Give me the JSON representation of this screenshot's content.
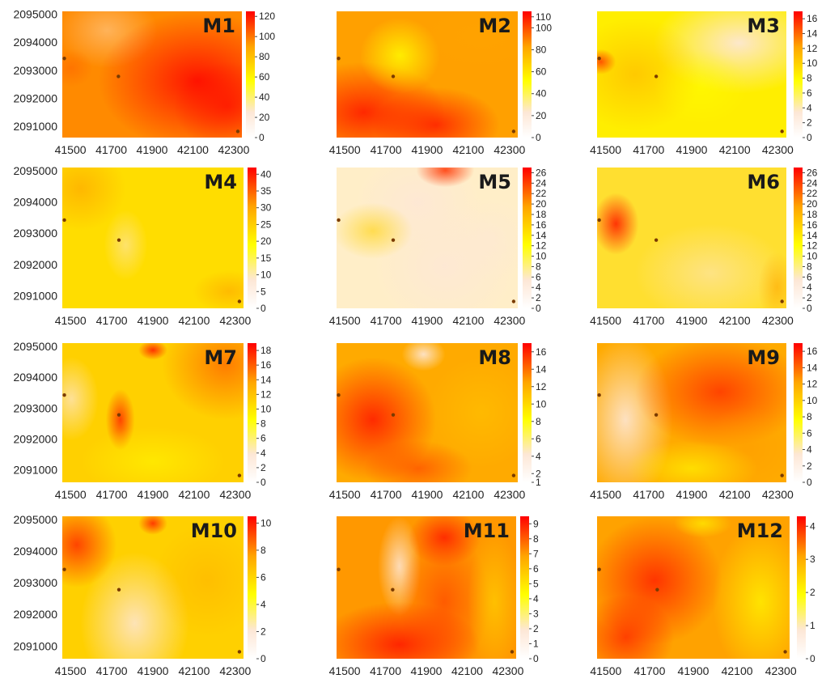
{
  "chart_data": [
    {
      "type": "heatmap",
      "title": "M1",
      "x_ticks": [
        "41500",
        "41700",
        "41900",
        "42100",
        "42300"
      ],
      "y_ticks": [
        "2095000",
        "2094000",
        "2093000",
        "2092000",
        "2091000"
      ],
      "colorbar_ticks": [
        "0",
        "20",
        "40",
        "60",
        "80",
        "100",
        "120"
      ],
      "colorbar_range": [
        0,
        125
      ],
      "wells": [
        [
          41470,
          2093420
        ],
        [
          41735,
          2092780
        ],
        [
          42320,
          2090820
        ]
      ],
      "dominant_pattern": "high values over the east/centre, low toward the west",
      "color_scale": [
        "#fdf1e6",
        "#ffff00",
        "#ffa500",
        "#ff0000"
      ]
    },
    {
      "type": "heatmap",
      "title": "M2",
      "x_ticks": [
        "41500",
        "41700",
        "41900",
        "42100",
        "42300"
      ],
      "y_ticks": [],
      "colorbar_ticks": [
        "0",
        "20",
        "40",
        "60",
        "80",
        "100",
        "110"
      ],
      "colorbar_range": [
        0,
        115
      ],
      "wells": [
        [
          41470,
          2093420
        ],
        [
          41735,
          2092780
        ],
        [
          42320,
          2090820
        ]
      ],
      "dominant_pattern": "high values in the south-west, moderate elsewhere",
      "color_scale": [
        "#fdf1e6",
        "#ffff00",
        "#ffa500",
        "#ff0000"
      ]
    },
    {
      "type": "heatmap",
      "title": "M3",
      "x_ticks": [
        "41500",
        "41700",
        "41900",
        "42100",
        "42300"
      ],
      "y_ticks": [],
      "colorbar_ticks": [
        "0",
        "2",
        "4",
        "6",
        "8",
        "10",
        "12",
        "14",
        "16"
      ],
      "colorbar_range": [
        0,
        17
      ],
      "wells": [
        [
          41470,
          2093420
        ],
        [
          41735,
          2092780
        ],
        [
          42320,
          2090820
        ]
      ],
      "dominant_pattern": "low values toward the north-east, higher in the south-west",
      "color_scale": [
        "#fdf1e6",
        "#ffff00",
        "#ffa500",
        "#ff0000"
      ]
    },
    {
      "type": "heatmap",
      "title": "M4",
      "x_ticks": [
        "41500",
        "41700",
        "41900",
        "42100",
        "42300"
      ],
      "y_ticks": [
        "2095000",
        "2094000",
        "2093000",
        "2092000",
        "2091000"
      ],
      "colorbar_ticks": [
        "0",
        "5",
        "10",
        "15",
        "20",
        "25",
        "30",
        "35",
        "40"
      ],
      "colorbar_range": [
        0,
        42
      ],
      "wells": [
        [
          41470,
          2093420
        ],
        [
          41735,
          2092780
        ],
        [
          42320,
          2090820
        ]
      ],
      "dominant_pattern": "mostly moderate, higher in the north-west corner",
      "color_scale": [
        "#fdf1e6",
        "#ffff00",
        "#ffa500",
        "#ff0000"
      ]
    },
    {
      "type": "heatmap",
      "title": "M5",
      "x_ticks": [
        "41500",
        "41700",
        "41900",
        "42100",
        "42300"
      ],
      "y_ticks": [],
      "colorbar_ticks": [
        "0",
        "2",
        "4",
        "6",
        "8",
        "10",
        "12",
        "14",
        "16",
        "18",
        "20",
        "22",
        "24",
        "26"
      ],
      "colorbar_range": [
        0,
        27
      ],
      "wells": [
        [
          41470,
          2093420
        ],
        [
          41735,
          2092780
        ],
        [
          42320,
          2090820
        ]
      ],
      "dominant_pattern": "mostly low values, high spot near the north edge",
      "color_scale": [
        "#fdf1e6",
        "#ffff00",
        "#ffa500",
        "#ff0000"
      ]
    },
    {
      "type": "heatmap",
      "title": "M6",
      "x_ticks": [
        "41500",
        "41700",
        "41900",
        "42100",
        "42300"
      ],
      "y_ticks": [],
      "colorbar_ticks": [
        "0",
        "2",
        "4",
        "6",
        "8",
        "10",
        "12",
        "14",
        "16",
        "18",
        "20",
        "22",
        "24",
        "26"
      ],
      "colorbar_range": [
        0,
        27
      ],
      "wells": [
        [
          41470,
          2093420
        ],
        [
          41735,
          2092780
        ],
        [
          42320,
          2090820
        ]
      ],
      "dominant_pattern": "moderate values, hotspot in the west",
      "color_scale": [
        "#fdf1e6",
        "#ffff00",
        "#ffa500",
        "#ff0000"
      ]
    },
    {
      "type": "heatmap",
      "title": "M7",
      "x_ticks": [
        "41500",
        "41700",
        "41900",
        "42100",
        "42300"
      ],
      "y_ticks": [
        "2095000",
        "2094000",
        "2093000",
        "2092000",
        "2091000"
      ],
      "colorbar_ticks": [
        "0",
        "2",
        "4",
        "6",
        "8",
        "10",
        "12",
        "14",
        "16",
        "18"
      ],
      "colorbar_range": [
        0,
        19
      ],
      "wells": [
        [
          41470,
          2093420
        ],
        [
          41735,
          2092780
        ],
        [
          42320,
          2090820
        ]
      ],
      "dominant_pattern": "higher values toward the north-east",
      "color_scale": [
        "#fdf1e6",
        "#ffff00",
        "#ffa500",
        "#ff0000"
      ]
    },
    {
      "type": "heatmap",
      "title": "M8",
      "x_ticks": [
        "41500",
        "41700",
        "41900",
        "42100",
        "42300"
      ],
      "y_ticks": [],
      "colorbar_ticks": [
        "1",
        "2",
        "4",
        "6",
        "8",
        "10",
        "12",
        "14",
        "16"
      ],
      "colorbar_range": [
        1,
        17
      ],
      "wells": [
        [
          41470,
          2093420
        ],
        [
          41735,
          2092780
        ],
        [
          42320,
          2090820
        ]
      ],
      "dominant_pattern": "high values in the west and south-west",
      "color_scale": [
        "#fdf1e6",
        "#ffff00",
        "#ffa500",
        "#ff0000"
      ]
    },
    {
      "type": "heatmap",
      "title": "M9",
      "x_ticks": [
        "41500",
        "41700",
        "41900",
        "42100",
        "42300"
      ],
      "y_ticks": [],
      "colorbar_ticks": [
        "0",
        "2",
        "4",
        "6",
        "8",
        "10",
        "12",
        "14",
        "16"
      ],
      "colorbar_range": [
        0,
        17
      ],
      "wells": [
        [
          41470,
          2093420
        ],
        [
          41735,
          2092780
        ],
        [
          42320,
          2090820
        ]
      ],
      "dominant_pattern": "low values to the west, high values in the centre and east",
      "color_scale": [
        "#fdf1e6",
        "#ffff00",
        "#ffa500",
        "#ff0000"
      ]
    },
    {
      "type": "heatmap",
      "title": "M10",
      "x_ticks": [
        "41500",
        "41700",
        "41900",
        "42100",
        "42300"
      ],
      "y_ticks": [
        "2095000",
        "2094000",
        "2093000",
        "2092000",
        "2091000"
      ],
      "colorbar_ticks": [
        "0",
        "2",
        "4",
        "6",
        "8",
        "10"
      ],
      "colorbar_range": [
        0,
        10.5
      ],
      "wells": [
        [
          41470,
          2093420
        ],
        [
          41735,
          2092780
        ],
        [
          42320,
          2090820
        ]
      ],
      "dominant_pattern": "high values in the north-west, low values south of the centre",
      "color_scale": [
        "#fdf1e6",
        "#ffff00",
        "#ffa500",
        "#ff0000"
      ]
    },
    {
      "type": "heatmap",
      "title": "M11",
      "x_ticks": [
        "41500",
        "41700",
        "41900",
        "42100",
        "42300"
      ],
      "y_ticks": [],
      "colorbar_ticks": [
        "0",
        "1",
        "2",
        "3",
        "4",
        "5",
        "6",
        "7",
        "8",
        "9"
      ],
      "colorbar_range": [
        0,
        9.5
      ],
      "wells": [
        [
          41470,
          2093420
        ],
        [
          41735,
          2092780
        ],
        [
          42320,
          2090820
        ]
      ],
      "dominant_pattern": "high values in the south and north-centre",
      "color_scale": [
        "#fdf1e6",
        "#ffff00",
        "#ffa500",
        "#ff0000"
      ]
    },
    {
      "type": "heatmap",
      "title": "M12",
      "x_ticks": [
        "41500",
        "41700",
        "41900",
        "42100",
        "42300"
      ],
      "y_ticks": [],
      "colorbar_ticks": [
        "0",
        "1",
        "2",
        "3",
        "4"
      ],
      "colorbar_range": [
        0,
        4.3
      ],
      "wells": [
        [
          41470,
          2093420
        ],
        [
          41735,
          2092780
        ],
        [
          42320,
          2090820
        ]
      ],
      "dominant_pattern": "high values in the west-centre, lower toward the east",
      "color_scale": [
        "#fdf1e6",
        "#ffff00",
        "#ffa500",
        "#ff0000"
      ]
    }
  ],
  "axes": {
    "x_range": [
      41460,
      42340
    ],
    "y_range": [
      2090600,
      2095100
    ]
  }
}
